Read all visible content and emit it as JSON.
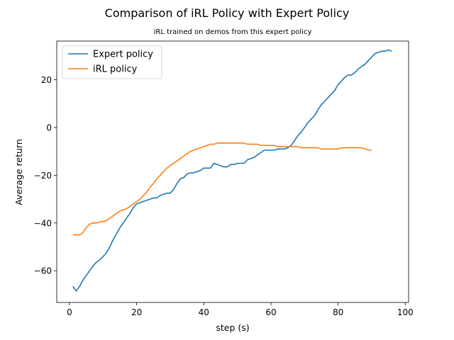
{
  "chart_data": {
    "type": "line",
    "title": "Comparison of iRL Policy with Expert Policy",
    "subtitle": "iRL trained on demos from this expert policy",
    "xlabel": "step (s)",
    "ylabel": "Average return",
    "xlim": [
      -3.8,
      101
    ],
    "ylim": [
      -73.3,
      36.2
    ],
    "xticks": [
      0,
      20,
      40,
      60,
      80,
      100
    ],
    "yticks": [
      -60,
      -40,
      -20,
      0,
      20
    ],
    "grid": false,
    "legend_placement": "top-left",
    "series": [
      {
        "name": "Expert policy",
        "color": "#1f77b4",
        "x": [
          1,
          2,
          3,
          4,
          5,
          6,
          7,
          8,
          9,
          10,
          11,
          12,
          13,
          14,
          15,
          16,
          17,
          18,
          19,
          20,
          21,
          22,
          23,
          24,
          25,
          26,
          27,
          28,
          29,
          30,
          31,
          32,
          33,
          34,
          35,
          36,
          37,
          38,
          39,
          40,
          41,
          42,
          43,
          44,
          45,
          46,
          47,
          48,
          49,
          50,
          51,
          52,
          53,
          54,
          55,
          56,
          57,
          58,
          59,
          60,
          61,
          62,
          63,
          64,
          65,
          66,
          67,
          68,
          69,
          70,
          71,
          72,
          73,
          74,
          75,
          76,
          77,
          78,
          79,
          80,
          81,
          82,
          83,
          84,
          85,
          86,
          87,
          88,
          89,
          90,
          91,
          92,
          93,
          94,
          95,
          96
        ],
        "y": [
          -66.5,
          -68.5,
          -66.5,
          -64,
          -62,
          -60,
          -58,
          -56.5,
          -55.5,
          -54,
          -52.5,
          -50,
          -47,
          -44.5,
          -42,
          -40,
          -38,
          -36,
          -33.5,
          -32,
          -31.5,
          -31,
          -30.5,
          -30,
          -29.5,
          -29.5,
          -28.5,
          -28,
          -27.5,
          -27.5,
          -26,
          -23.5,
          -21.5,
          -21,
          -19.5,
          -19,
          -19,
          -18.5,
          -18,
          -17,
          -17,
          -17,
          -15,
          -15.5,
          -16,
          -16.5,
          -16.5,
          -15.5,
          -15.5,
          -15,
          -15,
          -15,
          -13.5,
          -13,
          -12.5,
          -11.5,
          -10.5,
          -9.5,
          -9.5,
          -9.5,
          -9.5,
          -9,
          -9,
          -9,
          -8.5,
          -7.5,
          -5.5,
          -3.5,
          -2,
          0,
          2,
          3.5,
          5,
          7.5,
          9.5,
          11,
          12.5,
          14,
          15.5,
          18,
          19.5,
          21,
          22,
          22,
          23,
          24.5,
          25.5,
          26.5,
          28,
          29.5,
          31,
          31.5,
          32,
          32,
          32.5,
          32
        ]
      },
      {
        "name": "iRL policy",
        "color": "#ff7f0e",
        "x": [
          1,
          2,
          3,
          4,
          5,
          6,
          7,
          8,
          9,
          10,
          11,
          12,
          13,
          14,
          15,
          16,
          17,
          18,
          19,
          20,
          21,
          22,
          23,
          24,
          25,
          26,
          27,
          28,
          29,
          30,
          31,
          32,
          33,
          34,
          35,
          36,
          37,
          38,
          39,
          40,
          41,
          42,
          43,
          44,
          45,
          46,
          47,
          48,
          49,
          50,
          51,
          52,
          53,
          54,
          55,
          56,
          57,
          58,
          59,
          60,
          61,
          62,
          63,
          64,
          65,
          66,
          67,
          68,
          69,
          70,
          71,
          72,
          73,
          74,
          75,
          76,
          77,
          78,
          79,
          80,
          81,
          82,
          83,
          84,
          85,
          86,
          87,
          88,
          89,
          90
        ],
        "y": [
          -45,
          -45,
          -45,
          -44,
          -42,
          -40.5,
          -40,
          -40,
          -39.5,
          -39.5,
          -39,
          -38,
          -37,
          -36,
          -35,
          -34.5,
          -34,
          -33,
          -32,
          -31,
          -30,
          -28.5,
          -27,
          -25,
          -23.5,
          -21.5,
          -20,
          -18.5,
          -17,
          -16,
          -15,
          -14,
          -13,
          -12,
          -11,
          -10,
          -9.5,
          -9,
          -8.5,
          -8,
          -7.5,
          -7,
          -7,
          -6.5,
          -6.5,
          -6.5,
          -6.5,
          -6.5,
          -6.5,
          -6.5,
          -6.5,
          -6.5,
          -7,
          -7,
          -7,
          -7,
          -7.5,
          -7.5,
          -7.5,
          -7.5,
          -7.5,
          -8,
          -8,
          -8,
          -8,
          -8,
          -8,
          -8,
          -8.5,
          -8.5,
          -8.5,
          -8.5,
          -8.5,
          -8.5,
          -9,
          -9,
          -9,
          -9,
          -9,
          -9,
          -8.5,
          -8.5,
          -8.5,
          -8.5,
          -8.5,
          -8.5,
          -8.5,
          -9,
          -9.5,
          -9.5
        ]
      }
    ]
  }
}
